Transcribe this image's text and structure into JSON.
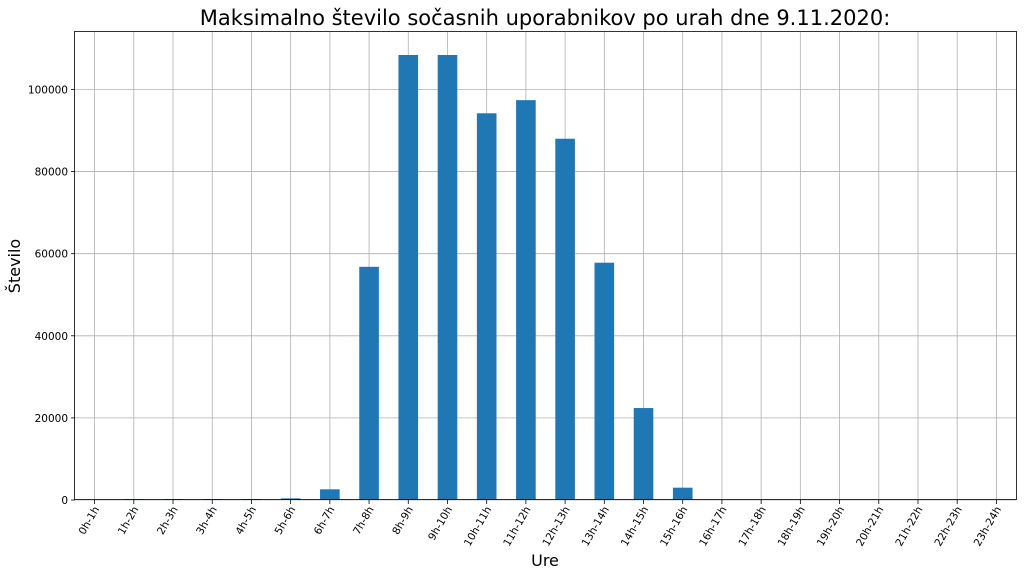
{
  "chart_data": {
    "type": "bar",
    "title": "Maksimalno število sočasnih uporabnikov po urah dne 9.11.2020:",
    "xlabel": "Ure",
    "ylabel": "Število",
    "categories": [
      "0h-1h",
      "1h-2h",
      "2h-3h",
      "3h-4h",
      "4h-5h",
      "5h-6h",
      "6h-7h",
      "7h-8h",
      "8h-9h",
      "9h-10h",
      "10h-11h",
      "11h-12h",
      "12h-13h",
      "13h-14h",
      "14h-15h",
      "15h-16h",
      "16h-17h",
      "17h-18h",
      "18h-19h",
      "19h-20h",
      "20h-21h",
      "21h-22h",
      "22h-23h",
      "23h-24h"
    ],
    "values": [
      0,
      200,
      200,
      200,
      200,
      400,
      2600,
      56800,
      108400,
      108400,
      94200,
      97400,
      88000,
      57800,
      22400,
      3000,
      0,
      0,
      0,
      0,
      0,
      0,
      0,
      0
    ],
    "yticks": [
      0,
      20000,
      40000,
      60000,
      80000,
      100000
    ],
    "ylim": [
      0,
      114000
    ],
    "grid": true,
    "color": "#1f77b4"
  }
}
